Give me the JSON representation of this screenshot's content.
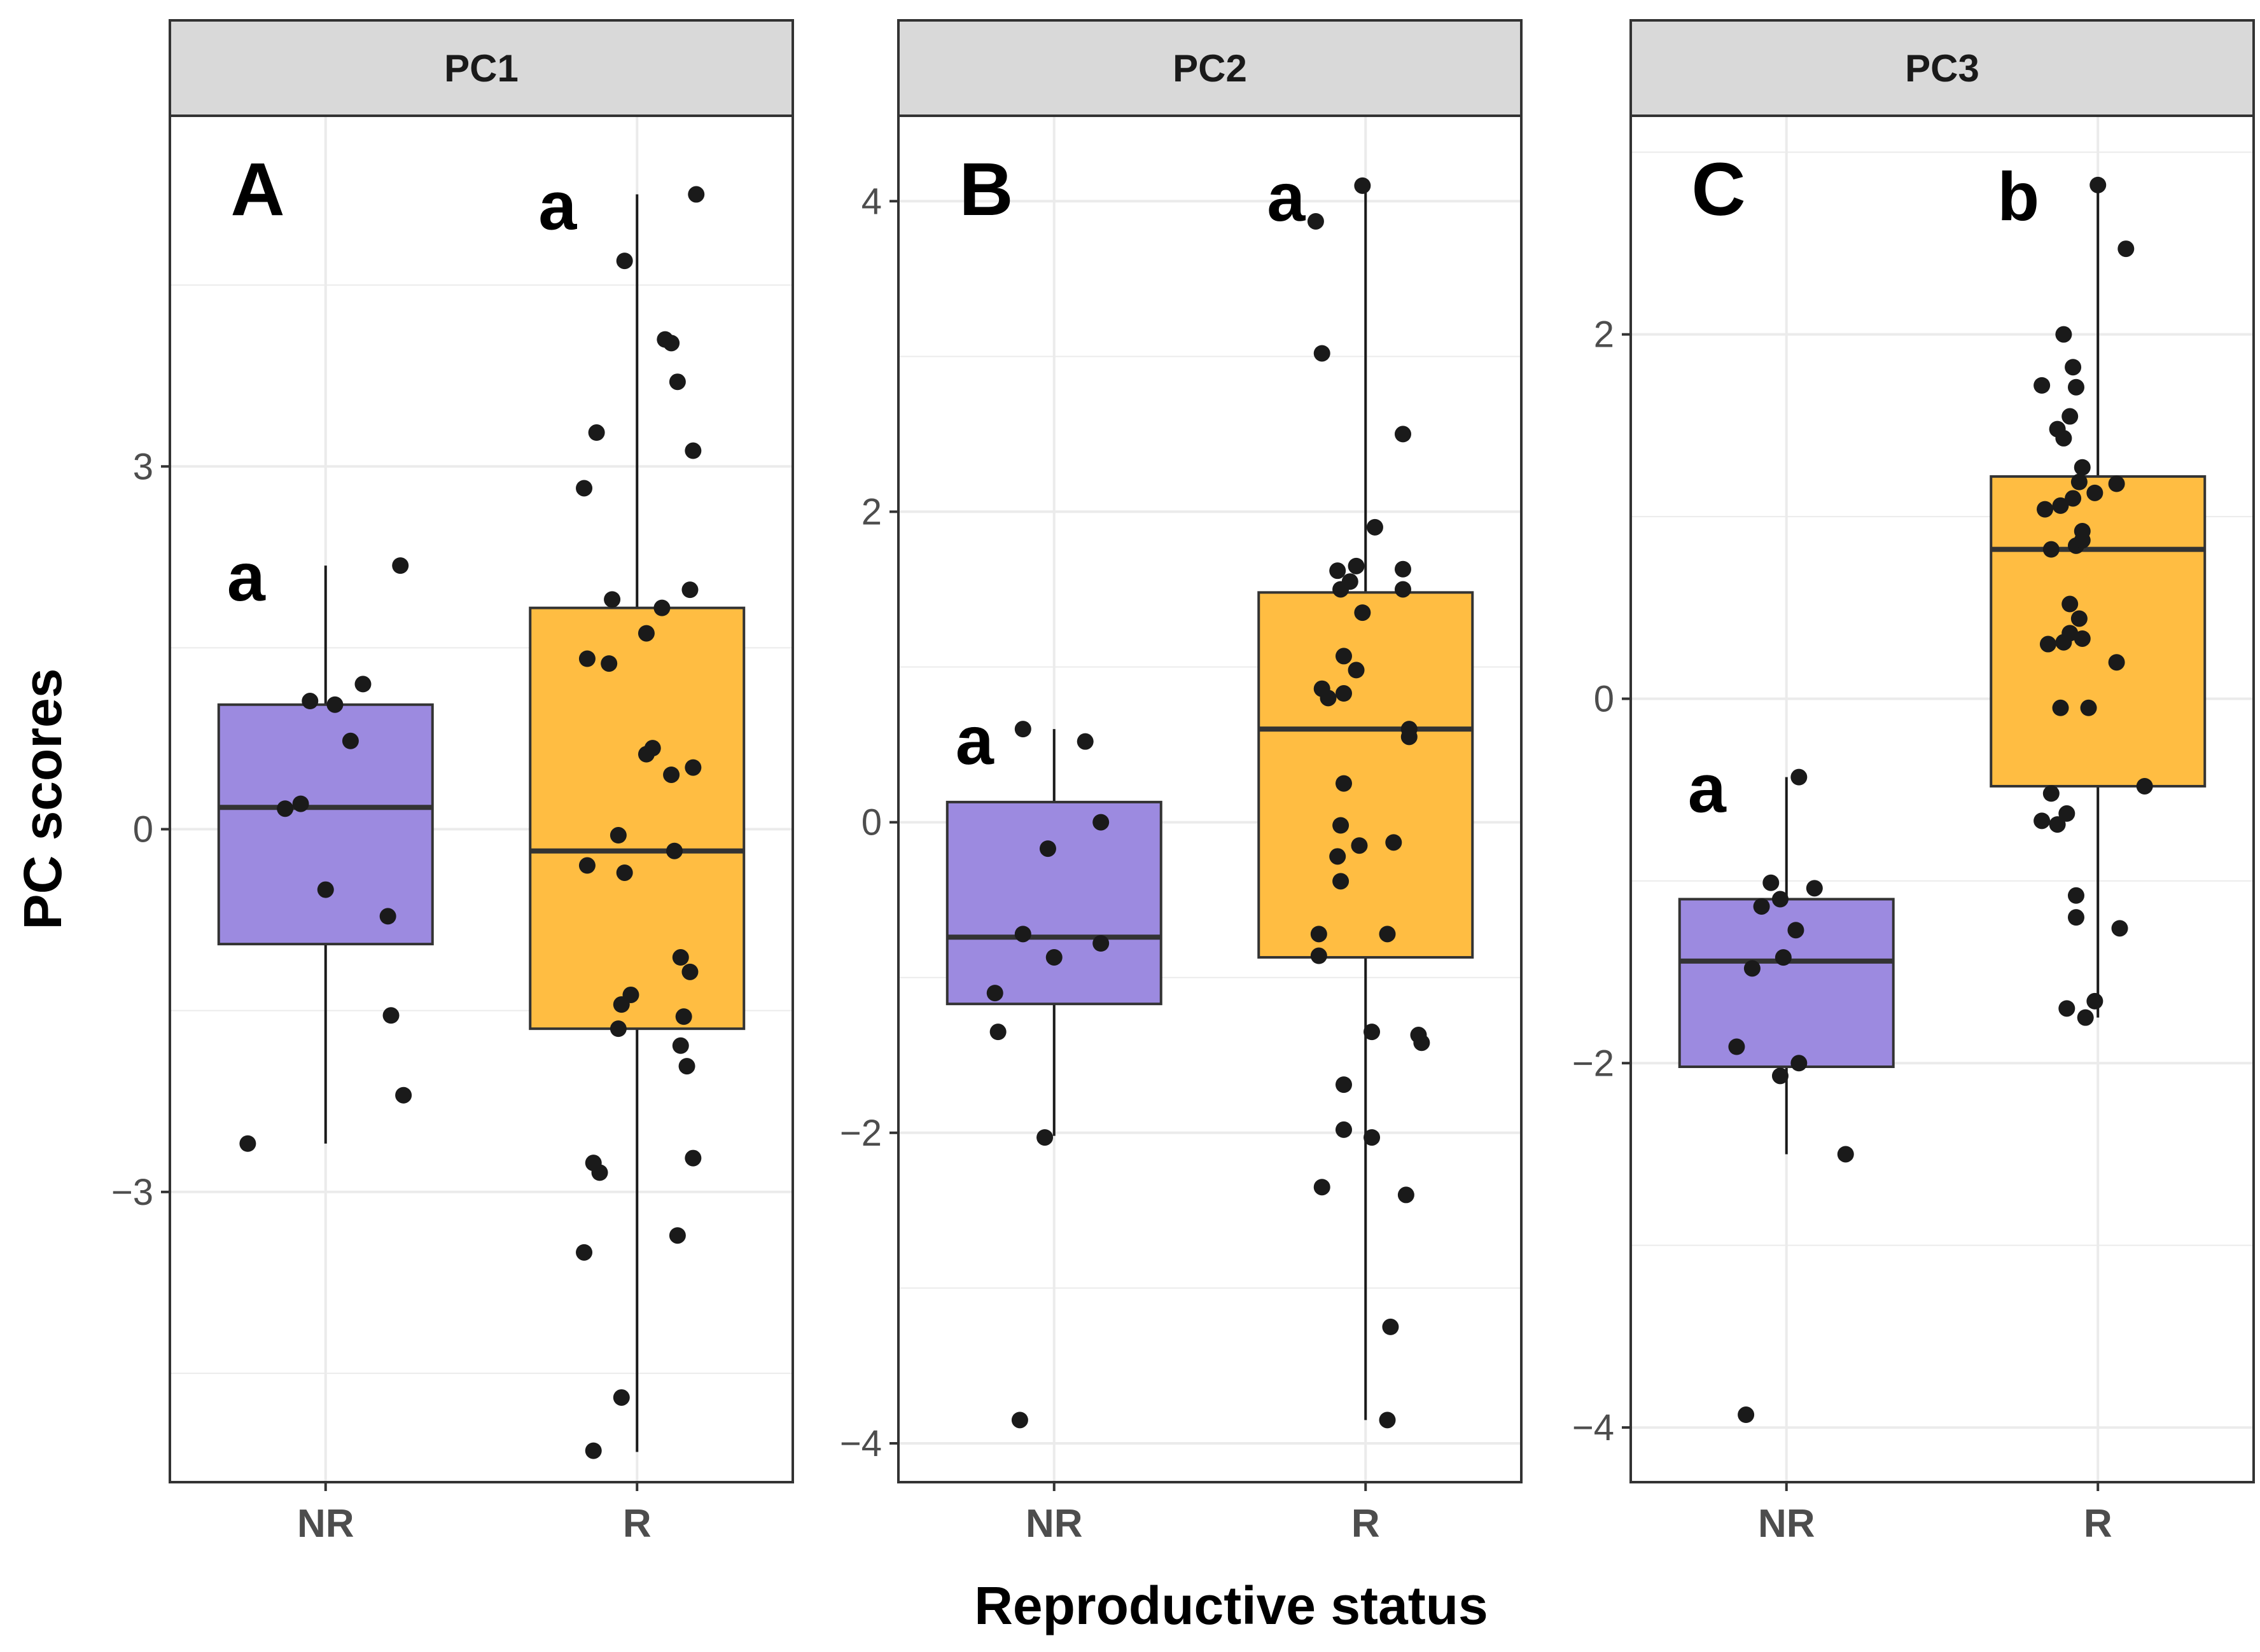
{
  "colors": {
    "NR": "#9c8ae0",
    "R": "#ffbd42",
    "strip_bg": "#d9d9d9",
    "grid": "#ebebeb",
    "point": "#1a1a1a"
  },
  "x_axis_title": "Reproductive status",
  "y_axis_title": "PC scores",
  "chart_data": [
    {
      "type": "box",
      "strip": "PC1",
      "panel_letter": "A",
      "ylim": [
        -5.4,
        5.9
      ],
      "y_ticks": [
        -3,
        0,
        3
      ],
      "y_tick_labels": [
        "−3",
        "0",
        "3"
      ],
      "categories": [
        "NR",
        "R"
      ],
      "groups": [
        {
          "name": "NR",
          "q1": -0.95,
          "median": 0.18,
          "q3": 1.03,
          "whisker_low": -2.6,
          "whisker_high": 2.18,
          "letter": "a",
          "points": [
            {
              "x": -0.25,
              "y": -2.6
            },
            {
              "x": 0.24,
              "y": 2.18
            },
            {
              "x": 0.12,
              "y": 1.2
            },
            {
              "x": -0.05,
              "y": 1.06
            },
            {
              "x": 0.03,
              "y": 1.03
            },
            {
              "x": 0.08,
              "y": 0.73
            },
            {
              "x": -0.13,
              "y": 0.17
            },
            {
              "x": -0.08,
              "y": 0.21
            },
            {
              "x": 0.0,
              "y": -0.5
            },
            {
              "x": 0.2,
              "y": -0.72
            },
            {
              "x": 0.21,
              "y": -1.54
            },
            {
              "x": 0.25,
              "y": -2.2
            }
          ]
        },
        {
          "name": "R",
          "q1": -1.65,
          "median": -0.18,
          "q3": 1.83,
          "whisker_low": -5.15,
          "whisker_high": 5.25,
          "letter": "a",
          "points": [
            {
              "x": 0.19,
              "y": 5.25
            },
            {
              "x": -0.04,
              "y": 4.7
            },
            {
              "x": 0.09,
              "y": 4.05
            },
            {
              "x": 0.11,
              "y": 4.02
            },
            {
              "x": 0.13,
              "y": 3.7
            },
            {
              "x": 0.18,
              "y": 3.13
            },
            {
              "x": -0.13,
              "y": 3.28
            },
            {
              "x": -0.17,
              "y": 2.82
            },
            {
              "x": 0.17,
              "y": 1.98
            },
            {
              "x": -0.08,
              "y": 1.9
            },
            {
              "x": 0.08,
              "y": 1.83
            },
            {
              "x": -0.16,
              "y": 1.41
            },
            {
              "x": -0.09,
              "y": 1.37
            },
            {
              "x": 0.03,
              "y": 1.62
            },
            {
              "x": 0.05,
              "y": 0.67
            },
            {
              "x": 0.03,
              "y": 0.62
            },
            {
              "x": 0.11,
              "y": 0.45
            },
            {
              "x": 0.18,
              "y": 0.51
            },
            {
              "x": -0.06,
              "y": -0.05
            },
            {
              "x": 0.12,
              "y": -0.18
            },
            {
              "x": -0.16,
              "y": -0.3
            },
            {
              "x": -0.04,
              "y": -0.36
            },
            {
              "x": 0.14,
              "y": -1.06
            },
            {
              "x": 0.17,
              "y": -1.18
            },
            {
              "x": -0.02,
              "y": -1.37
            },
            {
              "x": -0.05,
              "y": -1.45
            },
            {
              "x": 0.15,
              "y": -1.55
            },
            {
              "x": -0.06,
              "y": -1.65
            },
            {
              "x": 0.14,
              "y": -1.79
            },
            {
              "x": 0.16,
              "y": -1.96
            },
            {
              "x": -0.14,
              "y": -2.76
            },
            {
              "x": -0.12,
              "y": -2.84
            },
            {
              "x": 0.18,
              "y": -2.72
            },
            {
              "x": 0.13,
              "y": -3.36
            },
            {
              "x": -0.17,
              "y": -3.5
            },
            {
              "x": -0.05,
              "y": -4.7
            },
            {
              "x": -0.14,
              "y": -5.14
            }
          ]
        }
      ]
    },
    {
      "type": "box",
      "strip": "PC2",
      "panel_letter": "B",
      "ylim": [
        -4.25,
        4.55
      ],
      "y_ticks": [
        -4,
        -2,
        0,
        2,
        4
      ],
      "y_tick_labels": [
        "−4",
        "−2",
        "0",
        "2",
        "4"
      ],
      "categories": [
        "NR",
        "R"
      ],
      "groups": [
        {
          "name": "NR",
          "q1": -1.17,
          "median": -0.74,
          "q3": 0.13,
          "whisker_low": -2.02,
          "whisker_high": 0.6,
          "letter": "a",
          "points": [
            {
              "x": -0.1,
              "y": 0.6
            },
            {
              "x": 0.1,
              "y": 0.52
            },
            {
              "x": 0.15,
              "y": 0.0
            },
            {
              "x": -0.02,
              "y": -0.17
            },
            {
              "x": -0.1,
              "y": -0.72
            },
            {
              "x": 0.15,
              "y": -0.78
            },
            {
              "x": 0.0,
              "y": -0.87
            },
            {
              "x": -0.19,
              "y": -1.1
            },
            {
              "x": -0.18,
              "y": -1.35
            },
            {
              "x": -0.03,
              "y": -2.03
            },
            {
              "x": -0.11,
              "y": -3.85
            }
          ]
        },
        {
          "name": "R",
          "q1": -0.87,
          "median": 0.6,
          "q3": 1.48,
          "whisker_low": -3.85,
          "whisker_high": 4.1,
          "letter": "a",
          "points": [
            {
              "x": -0.01,
              "y": 4.1
            },
            {
              "x": -0.16,
              "y": 3.87
            },
            {
              "x": -0.14,
              "y": 3.02
            },
            {
              "x": 0.12,
              "y": 2.5
            },
            {
              "x": 0.03,
              "y": 1.9
            },
            {
              "x": -0.09,
              "y": 1.62
            },
            {
              "x": -0.03,
              "y": 1.65
            },
            {
              "x": 0.12,
              "y": 1.63
            },
            {
              "x": -0.08,
              "y": 1.5
            },
            {
              "x": -0.05,
              "y": 1.55
            },
            {
              "x": 0.12,
              "y": 1.5
            },
            {
              "x": -0.01,
              "y": 1.35
            },
            {
              "x": -0.07,
              "y": 1.07
            },
            {
              "x": -0.03,
              "y": 0.98
            },
            {
              "x": -0.14,
              "y": 0.86
            },
            {
              "x": -0.12,
              "y": 0.8
            },
            {
              "x": -0.07,
              "y": 0.83
            },
            {
              "x": 0.14,
              "y": 0.6
            },
            {
              "x": 0.14,
              "y": 0.55
            },
            {
              "x": -0.07,
              "y": 0.25
            },
            {
              "x": -0.08,
              "y": -0.02
            },
            {
              "x": -0.02,
              "y": -0.15
            },
            {
              "x": 0.09,
              "y": -0.13
            },
            {
              "x": -0.09,
              "y": -0.22
            },
            {
              "x": -0.08,
              "y": -0.38
            },
            {
              "x": -0.15,
              "y": -0.72
            },
            {
              "x": 0.07,
              "y": -0.72
            },
            {
              "x": -0.15,
              "y": -0.86
            },
            {
              "x": 0.02,
              "y": -1.35
            },
            {
              "x": 0.17,
              "y": -1.37
            },
            {
              "x": 0.18,
              "y": -1.42
            },
            {
              "x": -0.07,
              "y": -1.69
            },
            {
              "x": -0.07,
              "y": -1.98
            },
            {
              "x": 0.02,
              "y": -2.03
            },
            {
              "x": 0.13,
              "y": -2.4
            },
            {
              "x": -0.14,
              "y": -2.35
            },
            {
              "x": 0.08,
              "y": -3.25
            },
            {
              "x": 0.07,
              "y": -3.85
            }
          ]
        }
      ]
    },
    {
      "type": "box",
      "strip": "PC3",
      "panel_letter": "C",
      "ylim": [
        -4.3,
        3.2
      ],
      "y_ticks": [
        -4,
        -2,
        0,
        2
      ],
      "y_tick_labels": [
        "−4",
        "−2",
        "0",
        "2"
      ],
      "categories": [
        "NR",
        "R"
      ],
      "groups": [
        {
          "name": "NR",
          "q1": -2.02,
          "median": -1.44,
          "q3": -1.1,
          "whisker_low": -2.5,
          "whisker_high": -0.43,
          "letter": "a",
          "points": [
            {
              "x": 0.04,
              "y": -0.43
            },
            {
              "x": -0.05,
              "y": -1.01
            },
            {
              "x": 0.09,
              "y": -1.04
            },
            {
              "x": -0.02,
              "y": -1.1
            },
            {
              "x": -0.08,
              "y": -1.14
            },
            {
              "x": 0.03,
              "y": -1.27
            },
            {
              "x": -0.01,
              "y": -1.42
            },
            {
              "x": -0.11,
              "y": -1.48
            },
            {
              "x": -0.16,
              "y": -1.91
            },
            {
              "x": 0.04,
              "y": -2.0
            },
            {
              "x": -0.02,
              "y": -2.07
            },
            {
              "x": 0.19,
              "y": -2.5
            },
            {
              "x": -0.13,
              "y": -3.93
            }
          ]
        },
        {
          "name": "R",
          "q1": -0.48,
          "median": 0.82,
          "q3": 1.22,
          "whisker_low": -1.75,
          "whisker_high": 2.82,
          "letter": "b",
          "points": [
            {
              "x": 0.0,
              "y": 2.82
            },
            {
              "x": 0.09,
              "y": 2.47
            },
            {
              "x": -0.11,
              "y": 2.0
            },
            {
              "x": -0.08,
              "y": 1.82
            },
            {
              "x": -0.07,
              "y": 1.71
            },
            {
              "x": -0.18,
              "y": 1.72
            },
            {
              "x": -0.13,
              "y": 1.48
            },
            {
              "x": -0.09,
              "y": 1.55
            },
            {
              "x": -0.11,
              "y": 1.43
            },
            {
              "x": -0.05,
              "y": 1.27
            },
            {
              "x": -0.06,
              "y": 1.19
            },
            {
              "x": 0.06,
              "y": 1.18
            },
            {
              "x": -0.01,
              "y": 1.13
            },
            {
              "x": -0.08,
              "y": 1.1
            },
            {
              "x": -0.12,
              "y": 1.06
            },
            {
              "x": -0.17,
              "y": 1.04
            },
            {
              "x": -0.15,
              "y": 0.82
            },
            {
              "x": -0.07,
              "y": 0.84
            },
            {
              "x": -0.05,
              "y": 0.87
            },
            {
              "x": -0.05,
              "y": 0.92
            },
            {
              "x": -0.09,
              "y": 0.52
            },
            {
              "x": -0.06,
              "y": 0.44
            },
            {
              "x": -0.09,
              "y": 0.36
            },
            {
              "x": -0.05,
              "y": 0.33
            },
            {
              "x": -0.16,
              "y": 0.3
            },
            {
              "x": -0.11,
              "y": 0.31
            },
            {
              "x": 0.06,
              "y": 0.2
            },
            {
              "x": -0.12,
              "y": -0.05
            },
            {
              "x": -0.03,
              "y": -0.05
            },
            {
              "x": 0.15,
              "y": -0.48
            },
            {
              "x": -0.15,
              "y": -0.52
            },
            {
              "x": -0.1,
              "y": -0.63
            },
            {
              "x": -0.18,
              "y": -0.67
            },
            {
              "x": -0.13,
              "y": -0.69
            },
            {
              "x": -0.07,
              "y": -1.08
            },
            {
              "x": -0.07,
              "y": -1.2
            },
            {
              "x": 0.07,
              "y": -1.26
            },
            {
              "x": -0.01,
              "y": -1.66
            },
            {
              "x": -0.1,
              "y": -1.7
            },
            {
              "x": -0.04,
              "y": -1.75
            }
          ]
        }
      ]
    }
  ]
}
